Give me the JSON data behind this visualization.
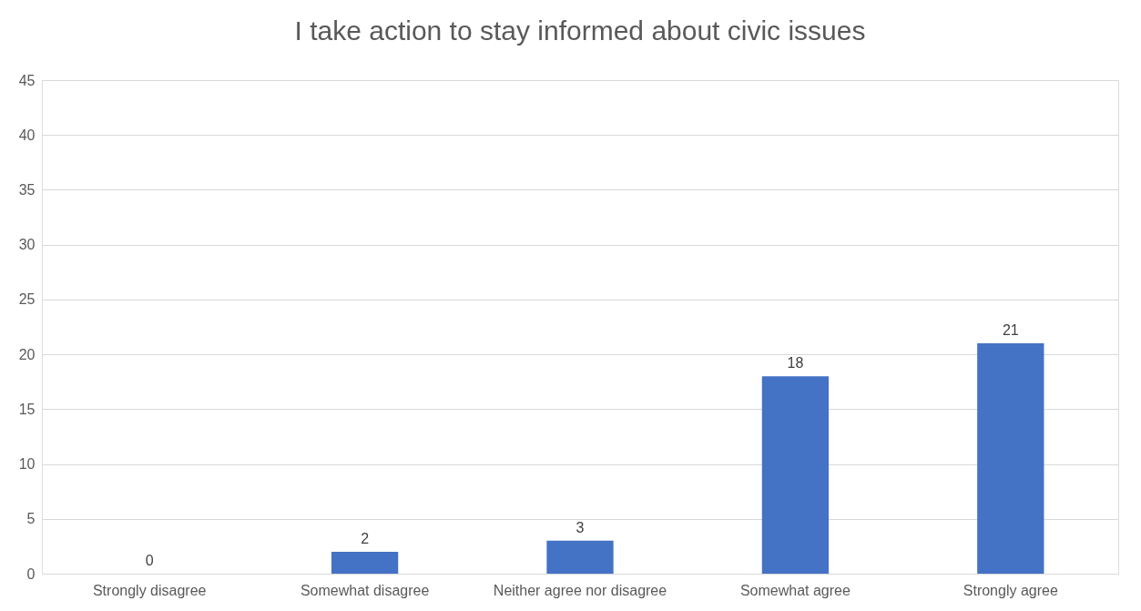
{
  "chart_data": {
    "type": "bar",
    "title": "I take action to stay informed about civic issues",
    "categories": [
      "Strongly disagree",
      "Somewhat disagree",
      "Neither agree nor disagree",
      "Somewhat agree",
      "Strongly agree"
    ],
    "values": [
      0,
      2,
      3,
      18,
      21
    ],
    "color": "#4472c4",
    "ylim": [
      0,
      45
    ],
    "yticks": [
      0,
      5,
      10,
      15,
      20,
      25,
      30,
      35,
      40,
      45
    ],
    "grid": "y",
    "data_labels": true
  }
}
